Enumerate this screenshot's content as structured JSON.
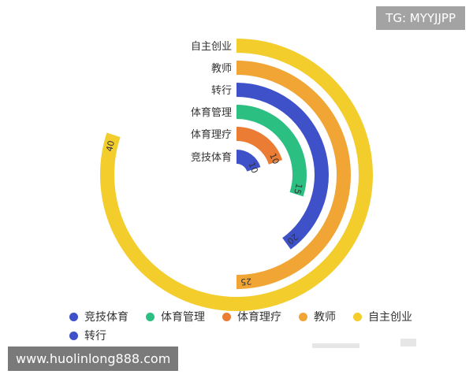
{
  "watermark_top": "TG: MYYJJPP",
  "watermark_bottom": "www.huolinlong888.com",
  "chart_data": {
    "type": "bar",
    "subtype": "polar-radial",
    "max": 50,
    "categories": [
      "竞技体育",
      "体育理疗",
      "体育管理",
      "转行",
      "教师",
      "自主创业"
    ],
    "values": [
      10,
      10,
      15,
      20,
      25,
      40
    ],
    "colors": [
      "#3f51c9",
      "#ea7c34",
      "#2cbf82",
      "#3f51c9",
      "#f0a535",
      "#f2cd2c"
    ],
    "legend": [
      "竞技体育",
      "体育管理",
      "体育理疗",
      "教师",
      "自主创业",
      "转行"
    ],
    "legend_colors": [
      "#3f51c9",
      "#2cbf82",
      "#ea7c34",
      "#f0a535",
      "#f2cd2c",
      "#3f51c9"
    ]
  }
}
